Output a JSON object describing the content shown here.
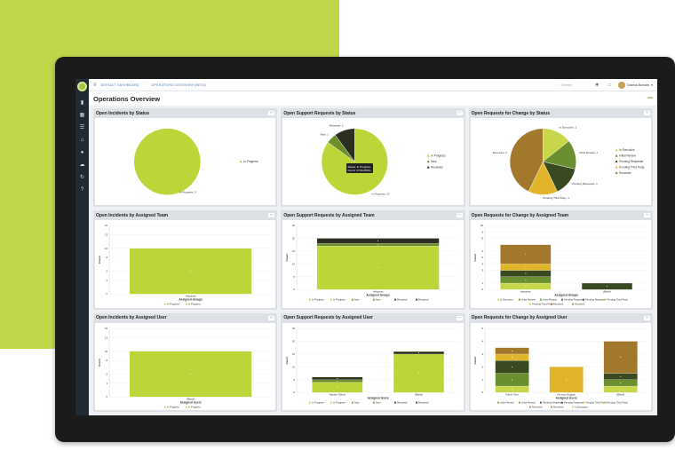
{
  "colors": {
    "lime": "#bfd64b",
    "in_progress": "#bcd538",
    "new": "#6d8e2a",
    "resolved": "#2a2f20",
    "in_execution": "#c7d64a",
    "initial_review": "#6b8f2e",
    "pending_requester": "#3a4a20",
    "pending_third_party": "#e0b52a",
    "received": "#a1782c",
    "navy": "#1f2a33"
  },
  "topbar": {
    "breadcrumb_1": "DEFAULT DASHBOARD",
    "breadcrumb_2": "OPERATIONS OVERVIEW (BETA)",
    "search_placeholder": "Search",
    "user_name": "Dianna Burnam",
    "menu_icon": "hamburger-icon",
    "search_icon": "search-icon",
    "settings_icon": "gear-icon",
    "chat_icon": "chat-icon",
    "chevron_icon": "chevron-down-icon"
  },
  "nav_icons": [
    "logo",
    "chart-icon",
    "grid-icon",
    "list-icon",
    "bank-icon",
    "users-icon",
    "cloud-icon",
    "refresh-icon",
    "help-icon"
  ],
  "page": {
    "title": "Operations Overview",
    "more": "•••"
  },
  "cards": [
    {
      "title": "Open Incidents by Status"
    },
    {
      "title": "Open Support Requests by Status"
    },
    {
      "title": "Open Requests for Change by Status"
    },
    {
      "title": "Open Incidents by Assigned Team"
    },
    {
      "title": "Open Support Requests by Assigned Team"
    },
    {
      "title": "Open Requests for Change by Assigned Team"
    },
    {
      "title": "Open Incidents by Assigned User"
    },
    {
      "title": "Open Support Requests by Assigned User"
    },
    {
      "title": "Open Requests for Change by Assigned User"
    }
  ],
  "kebab": "···",
  "chart_data": [
    {
      "type": "pie",
      "title": "Open Incidents by Status",
      "slices": [
        {
          "label": "In Progress",
          "value": 3
        }
      ],
      "slice_labels": [
        "In Progress, 3"
      ],
      "legend": [
        "In Progress"
      ],
      "legend_placement": "right"
    },
    {
      "type": "pie",
      "title": "Open Support Requests by Status",
      "slices": [
        {
          "label": "In Progress",
          "value": 17
        },
        {
          "label": "New",
          "value": 1
        },
        {
          "label": "Resolved",
          "value": 2
        }
      ],
      "slice_labels": [
        "In Progress, 17",
        "New, 1",
        "Resolved, 2"
      ],
      "legend": [
        "In Progress",
        "New",
        "Resolved"
      ],
      "legend_placement": "right",
      "tooltip": {
        "line1": "Status: In Progress",
        "line2": "Count: 17.00 (85%)"
      }
    },
    {
      "type": "pie",
      "title": "Open Requests for Change by Status",
      "slices": [
        {
          "label": "In Execution",
          "value": 1
        },
        {
          "label": "Initial Review",
          "value": 1
        },
        {
          "label": "Pending Requester",
          "value": 1
        },
        {
          "label": "Pending Third Party",
          "value": 1
        },
        {
          "label": "Received",
          "value": 3
        }
      ],
      "slice_labels": [
        "In Execution, 1",
        "Initial Review, 1",
        "Pending Requester, 1",
        "Pending Third Party, 1",
        "Received, 3"
      ],
      "legend": [
        "In Execution",
        "Initial Review",
        "Pending Requester",
        "Pending Third Party",
        "Received"
      ],
      "legend_placement": "right"
    },
    {
      "type": "bar",
      "title": "Open Incidents by Assigned Team",
      "categories": [
        "Helpdesk"
      ],
      "series": [
        {
          "name": "In Progress",
          "values": [
            10
          ]
        }
      ],
      "xlabel": "Assigned Groups",
      "ylabel": "Count",
      "ylim": [
        0,
        15
      ],
      "yticks": [
        0,
        3,
        5,
        8,
        10,
        13,
        15
      ],
      "legend": [
        "In Progress",
        "In Progress"
      ]
    },
    {
      "type": "bar",
      "title": "Open Support Requests by Assigned Team",
      "categories": [
        "Helpdesk"
      ],
      "series": [
        {
          "name": "In Progress",
          "values": [
            17
          ]
        },
        {
          "name": "New",
          "values": [
            1
          ]
        },
        {
          "name": "Resolved",
          "values": [
            2
          ]
        }
      ],
      "xlabel": "Assigned Groups",
      "ylabel": "Count",
      "ylim": [
        0,
        25
      ],
      "yticks": [
        0,
        5,
        10,
        15,
        20,
        25
      ],
      "legend": [
        "In Progress",
        "In Progress",
        "New",
        "New",
        "Resolved",
        "Resolved"
      ]
    },
    {
      "type": "bar",
      "title": "Open Requests for Change by Assigned Team",
      "categories": [
        "Helpdesk",
        "(Blank)"
      ],
      "series": [
        {
          "name": "In Execution",
          "values": [
            1,
            0
          ]
        },
        {
          "name": "Initial Review",
          "values": [
            1,
            0
          ]
        },
        {
          "name": "Pending Requester",
          "values": [
            1,
            1
          ]
        },
        {
          "name": "Pending Third Party",
          "values": [
            1,
            0
          ]
        },
        {
          "name": "Received",
          "values": [
            3,
            0
          ]
        }
      ],
      "xlabel": "Assigned Groups",
      "ylabel": "Count",
      "ylim": [
        0,
        10
      ],
      "yticks": [
        0,
        1,
        3,
        4,
        5,
        6,
        8,
        9,
        10
      ],
      "legend": [
        "In Execution",
        "Initial Review",
        "Initial Review",
        "Pending Requester",
        "Pending Requester",
        "Pending Third Party",
        "Pending Third Party",
        "Received",
        "Received"
      ]
    },
    {
      "type": "bar",
      "title": "Open Incidents by Assigned User",
      "categories": [
        "(Blank)"
      ],
      "series": [
        {
          "name": "In Progress",
          "values": [
            10
          ]
        }
      ],
      "xlabel": "Assigned Users",
      "ylabel": "Count",
      "ylim": [
        0,
        15
      ],
      "yticks": [
        0,
        3,
        5,
        8,
        10,
        13,
        15
      ],
      "legend": [
        "In Progress",
        "In Progress"
      ]
    },
    {
      "type": "bar",
      "title": "Open Support Requests by Assigned User",
      "categories": [
        "Hayden Difiore",
        "(Blank)"
      ],
      "series": [
        {
          "name": "In Progress",
          "values": [
            4,
            15
          ]
        },
        {
          "name": "New",
          "values": [
            1,
            0
          ]
        },
        {
          "name": "Resolved",
          "values": [
            1,
            1
          ]
        }
      ],
      "xlabel": "Assigned Users",
      "ylabel": "Count",
      "ylim": [
        0,
        25
      ],
      "yticks": [
        0,
        5,
        10,
        15,
        20,
        25
      ],
      "legend": [
        "In Progress",
        "In Progress",
        "New",
        "New",
        "Resolved",
        "Resolved"
      ]
    },
    {
      "type": "bar",
      "title": "Open Requests for Change by Assigned User",
      "categories": [
        "Admin User",
        "Herman Duggan",
        "(Blank)"
      ],
      "series": [
        {
          "name": "In Execution",
          "values": [
            0.5,
            0,
            0.5
          ]
        },
        {
          "name": "Initial Review",
          "values": [
            1,
            0,
            0.5
          ]
        },
        {
          "name": "Pending Requester",
          "values": [
            1,
            0,
            0.5
          ]
        },
        {
          "name": "Pending Third Party",
          "values": [
            0.5,
            2,
            0
          ]
        },
        {
          "name": "Received",
          "values": [
            0.5,
            0,
            2.5
          ]
        }
      ],
      "xlabel": "Assigned Users",
      "ylabel": "Count",
      "ylim": [
        0,
        5
      ],
      "yticks": [
        0,
        1,
        2,
        3,
        4,
        5
      ],
      "legend": [
        "Initial Review",
        "Initial Review",
        "Pending Requester",
        "Pending Requester",
        "Pending Third Party",
        "Pending Third Party",
        "Received",
        "Received",
        "In Execution"
      ]
    }
  ]
}
